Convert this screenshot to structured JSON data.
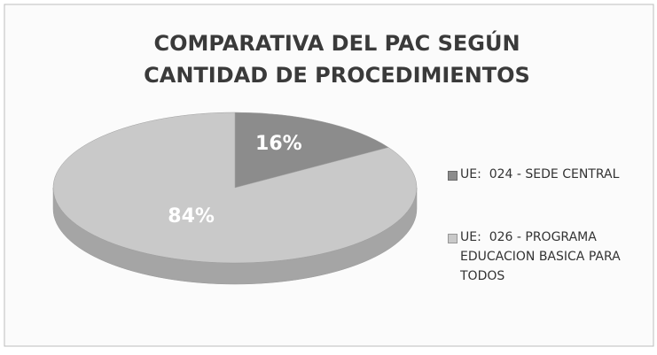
{
  "chart_data": {
    "type": "pie3d",
    "title": [
      "COMPARATIVA DEL PAC SEGÚN",
      "CANTIDAD DE PROCEDIMIENTOS"
    ],
    "categories": [
      "UE:  024 - SEDE CENTRAL",
      "UE:  026 - PROGRAMA EDUCACION BASICA PARA TODOS"
    ],
    "values": [
      16,
      84
    ],
    "value_labels": [
      "16%",
      "84%"
    ],
    "colors": [
      "#8c8c8c",
      "#c9c9c9"
    ],
    "legend": "right"
  }
}
